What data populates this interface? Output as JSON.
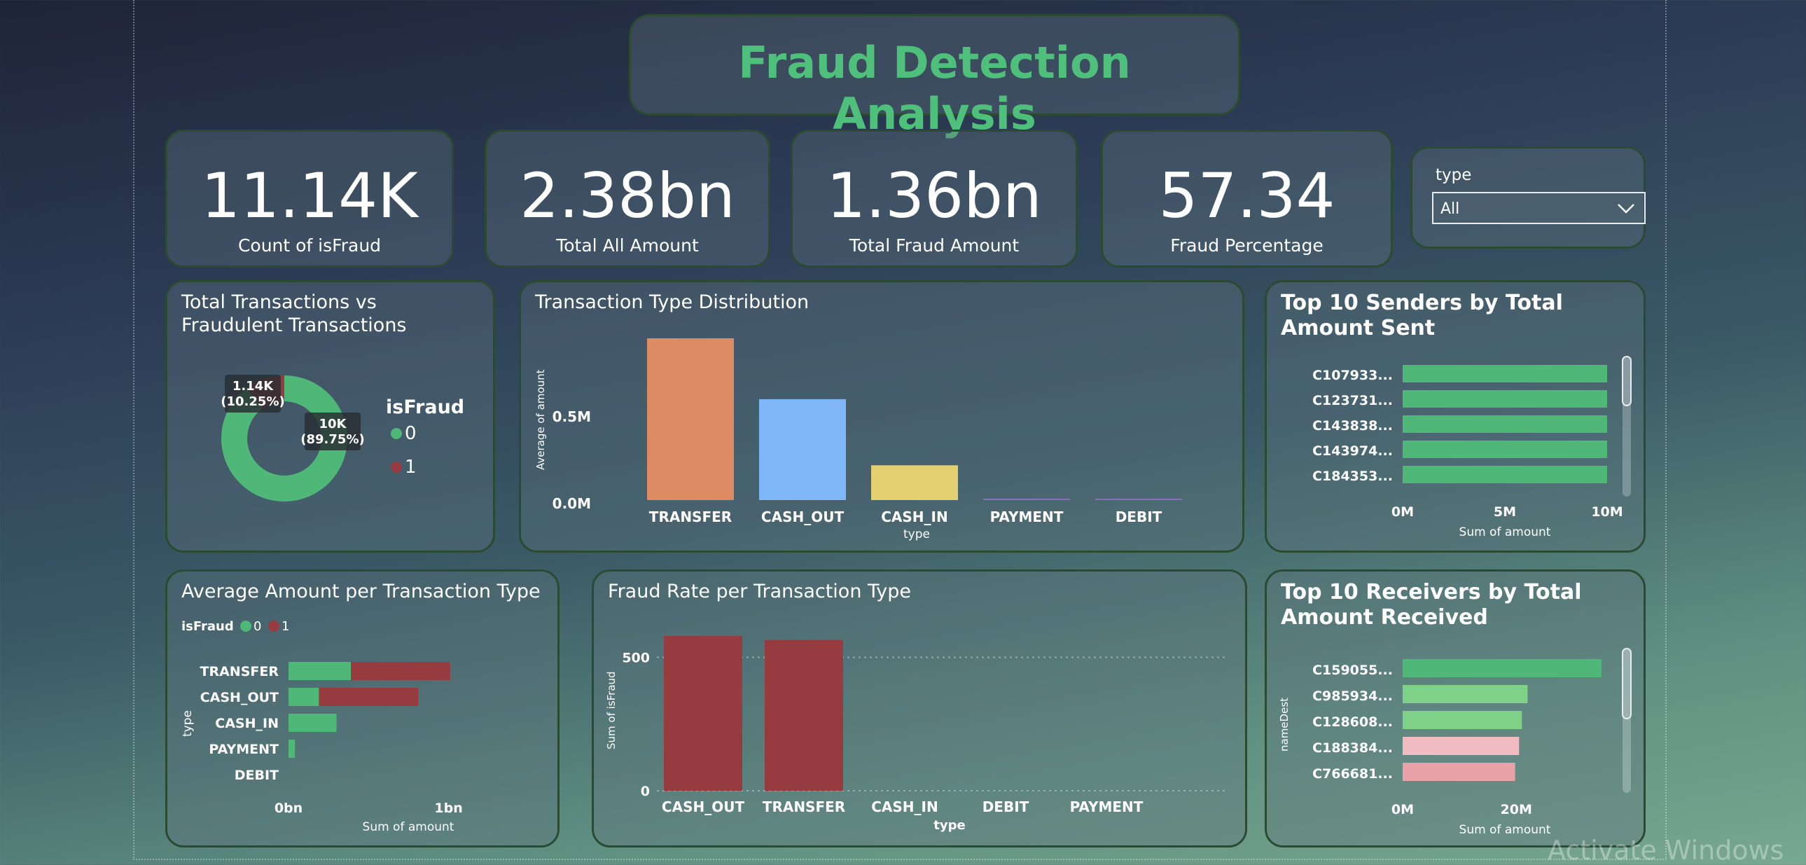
{
  "dashboard_title": "Fraud Detection Analysis",
  "kpis": [
    {
      "value": "11.14K",
      "label": "Count of isFraud"
    },
    {
      "value": "2.38bn",
      "label": "Total All Amount"
    },
    {
      "value": "1.36bn",
      "label": "Total Fraud Amount"
    },
    {
      "value": "57.34",
      "label": "Fraud Percentage"
    }
  ],
  "slicer": {
    "label": "type",
    "value": "All",
    "icon": "chevron-down-icon"
  },
  "watermark": "Activate Windows",
  "colors": {
    "green": "#4fb879",
    "red": "#963c41",
    "orange": "#dc8b62",
    "blue": "#7fb6f8",
    "yellow": "#e3d070",
    "purple": "#8d6fbf",
    "light_green": "#7fd089",
    "pink": "#f0bcc1",
    "pink2": "#e8a2a8"
  },
  "chart_data": [
    {
      "id": "donut",
      "type": "pie",
      "title": "Total Transactions vs Fraudulent Transactions",
      "legend_title": "isFraud",
      "legend_position": "right",
      "slices": [
        {
          "name": "0",
          "value": 10000,
          "label_value": "10K",
          "label_pct": "(89.75%)"
        },
        {
          "name": "1",
          "value": 1140,
          "label_value": "1.14K",
          "label_pct": "(10.25%)"
        }
      ]
    },
    {
      "id": "type_distribution",
      "type": "bar",
      "title": "Transaction Type Distribution",
      "xlabel": "type",
      "ylabel": "Average of amount",
      "categories": [
        "TRANSFER",
        "CASH_OUT",
        "CASH_IN",
        "PAYMENT",
        "DEBIT"
      ],
      "values": [
        930000,
        580000,
        200000,
        8000,
        5000
      ],
      "ytick_labels": [
        "0.0M",
        "0.5M"
      ],
      "yticks": [
        0,
        500000
      ],
      "ylim": [
        0,
        930000
      ],
      "grid": false
    },
    {
      "id": "top_senders",
      "type": "bar",
      "orientation": "horizontal",
      "title": "Top 10 Senders by Total Amount Sent",
      "xlabel": "Sum of amount",
      "categories": [
        "C107933...",
        "C123731...",
        "C143838...",
        "C143974...",
        "C184353..."
      ],
      "values": [
        10000000,
        10000000,
        10000000,
        10000000,
        10000000
      ],
      "xtick_labels": [
        "0M",
        "5M",
        "10M"
      ],
      "xticks": [
        0,
        5000000,
        10000000
      ],
      "xlim": [
        0,
        10000000
      ]
    },
    {
      "id": "avg_amount",
      "type": "bar",
      "orientation": "horizontal",
      "stacked": true,
      "title": "Average Amount per Transaction Type",
      "legend_title": "isFraud",
      "legend_position": "top-left",
      "xlabel": "Sum of amount",
      "ylabel": "type",
      "categories": [
        "TRANSFER",
        "CASH_OUT",
        "CASH_IN",
        "PAYMENT",
        "DEBIT"
      ],
      "series": [
        {
          "name": "0",
          "values": [
            0.39,
            0.19,
            0.3,
            0.04,
            0.0
          ]
        },
        {
          "name": "1",
          "values": [
            0.62,
            0.62,
            0.0,
            0.0,
            0.0
          ]
        }
      ],
      "xtick_labels": [
        "0bn",
        "1bn"
      ],
      "xticks": [
        0,
        1
      ],
      "xlim": [
        0,
        1.4
      ]
    },
    {
      "id": "fraud_rate",
      "type": "bar",
      "title": "Fraud Rate per Transaction Type",
      "xlabel": "type",
      "ylabel": "Sum of isFraud",
      "categories": [
        "CASH_OUT",
        "TRANSFER",
        "CASH_IN",
        "DEBIT",
        "PAYMENT"
      ],
      "values": [
        580,
        565,
        0,
        0,
        0
      ],
      "ytick_labels": [
        "0",
        "500"
      ],
      "yticks": [
        0,
        500
      ],
      "ylim": [
        0,
        630
      ],
      "grid": true
    },
    {
      "id": "top_receivers",
      "type": "bar",
      "orientation": "horizontal",
      "title": "Top 10 Receivers by Total Amount Received",
      "xlabel": "Sum of amount",
      "ylabel": "nameDest",
      "categories": [
        "C159055...",
        "C985934...",
        "C128608...",
        "C188384...",
        "C766681..."
      ],
      "values": [
        35000000,
        22000000,
        21000000,
        20500000,
        19800000
      ],
      "xtick_labels": [
        "0M",
        "20M"
      ],
      "xticks": [
        0,
        20000000
      ],
      "xlim": [
        0,
        36000000
      ]
    }
  ]
}
